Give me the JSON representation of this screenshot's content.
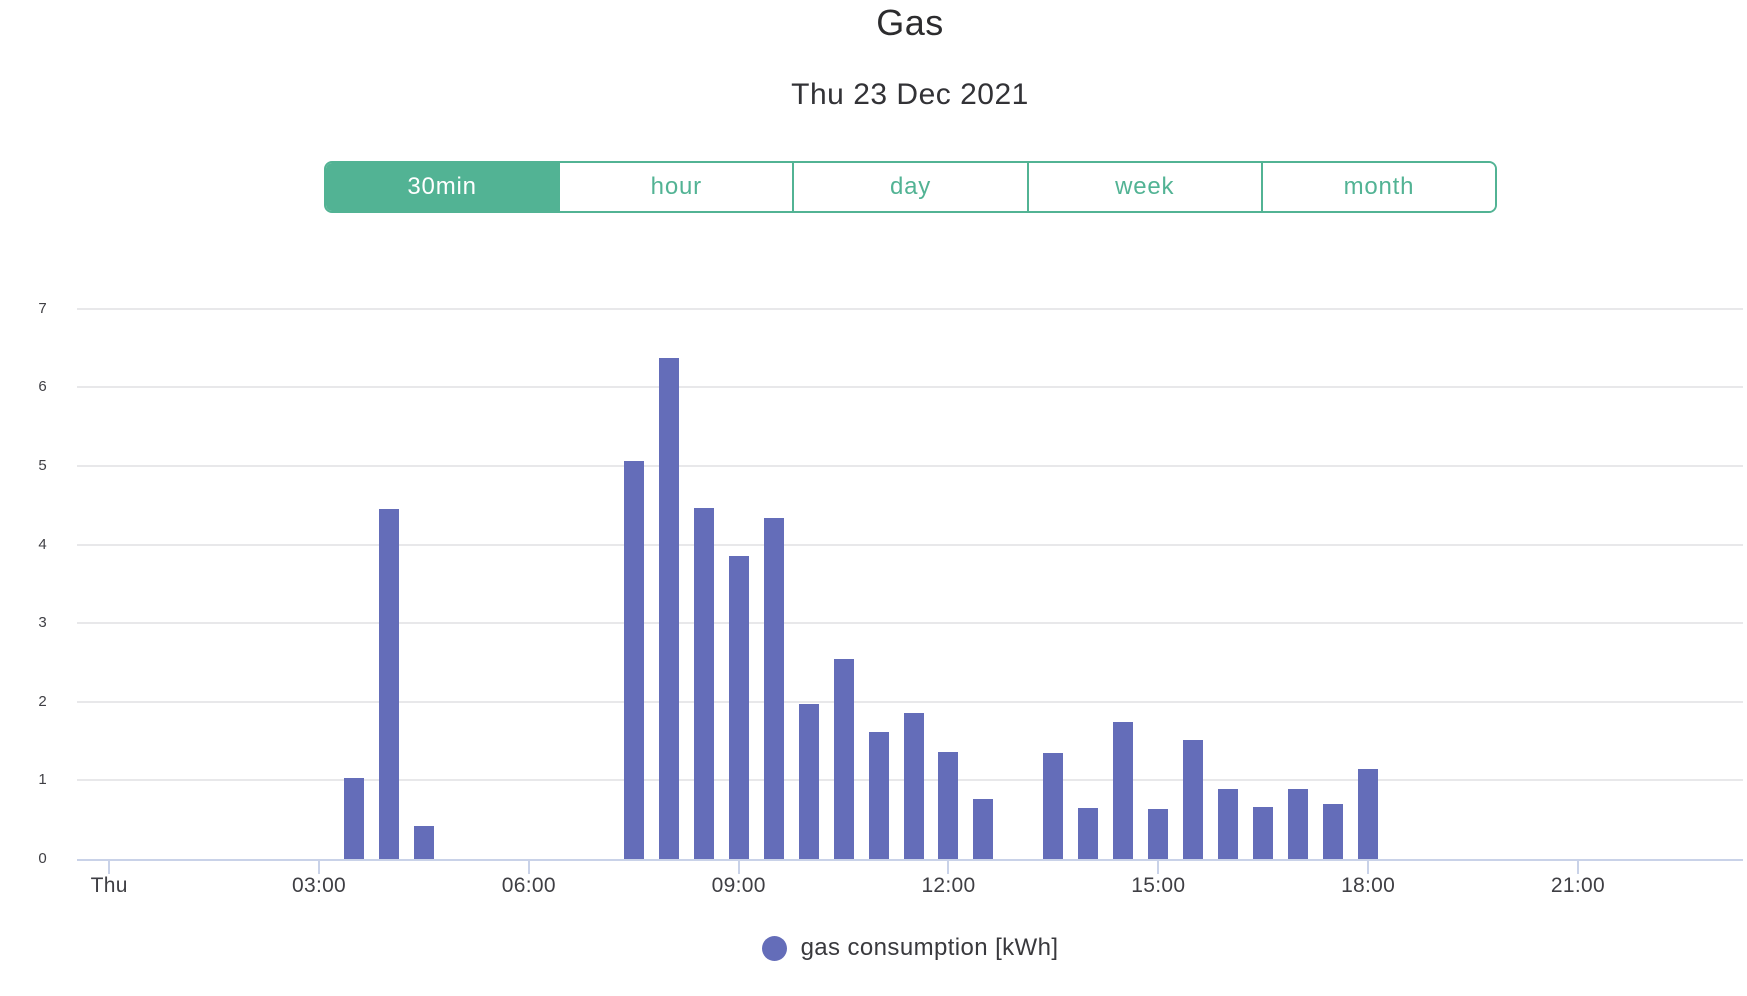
{
  "header": {
    "title": "Gas",
    "subtitle": "Thu 23 Dec 2021"
  },
  "interval_selector": {
    "buttons": [
      {
        "label": "30min",
        "active": true
      },
      {
        "label": "hour",
        "active": false
      },
      {
        "label": "day",
        "active": false
      },
      {
        "label": "week",
        "active": false
      },
      {
        "label": "month",
        "active": false
      }
    ]
  },
  "legend": {
    "label": "gas consumption [kWh]",
    "marker": "circle-icon"
  },
  "colors": {
    "accent_green": "#52b394",
    "bar_purple": "#646db9",
    "axis_line": "#c9d2e8",
    "gridline": "#e8e8ea",
    "text_dark": "#2c2c2e",
    "text_gray": "#3f3f44"
  },
  "chart_data": {
    "type": "bar",
    "title": "Gas",
    "subtitle": "Thu 23 Dec 2021",
    "ylabel": "",
    "xlabel": "",
    "bin_minutes": 30,
    "grid": true,
    "legend_position": "bottom",
    "y_axis": {
      "min": 0,
      "max": 7,
      "ticks": [
        0,
        1,
        2,
        3,
        4,
        5,
        6,
        7
      ]
    },
    "x_axis": {
      "range_hours": [
        0,
        24
      ],
      "ticks": [
        {
          "hours": 0,
          "label": "Thu"
        },
        {
          "hours": 3,
          "label": "03:00"
        },
        {
          "hours": 6,
          "label": "06:00"
        },
        {
          "hours": 9,
          "label": "09:00"
        },
        {
          "hours": 12,
          "label": "12:00"
        },
        {
          "hours": 15,
          "label": "15:00"
        },
        {
          "hours": 18,
          "label": "18:00"
        },
        {
          "hours": 21,
          "label": "21:00"
        }
      ]
    },
    "series": [
      {
        "name": "gas consumption [kWh]",
        "color": "#646db9",
        "points": [
          {
            "time": "03:30",
            "value": 1.03
          },
          {
            "time": "04:00",
            "value": 4.45
          },
          {
            "time": "04:30",
            "value": 0.42
          },
          {
            "time": "07:30",
            "value": 5.06
          },
          {
            "time": "08:00",
            "value": 6.37
          },
          {
            "time": "08:30",
            "value": 4.46
          },
          {
            "time": "09:00",
            "value": 3.86
          },
          {
            "time": "09:30",
            "value": 4.34
          },
          {
            "time": "10:00",
            "value": 1.97
          },
          {
            "time": "10:30",
            "value": 2.55
          },
          {
            "time": "11:00",
            "value": 1.61
          },
          {
            "time": "11:30",
            "value": 1.86
          },
          {
            "time": "12:00",
            "value": 1.36
          },
          {
            "time": "12:30",
            "value": 0.76
          },
          {
            "time": "13:30",
            "value": 1.35
          },
          {
            "time": "14:00",
            "value": 0.65
          },
          {
            "time": "14:30",
            "value": 1.74
          },
          {
            "time": "15:00",
            "value": 0.63
          },
          {
            "time": "15:30",
            "value": 1.52
          },
          {
            "time": "16:00",
            "value": 0.89
          },
          {
            "time": "16:30",
            "value": 0.66
          },
          {
            "time": "17:00",
            "value": 0.89
          },
          {
            "time": "17:30",
            "value": 0.7
          },
          {
            "time": "18:00",
            "value": 1.14
          }
        ]
      }
    ]
  }
}
